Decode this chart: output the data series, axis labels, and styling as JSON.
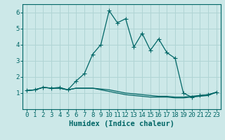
{
  "xlabel": "Humidex (Indice chaleur)",
  "bg_color": "#cce8e8",
  "line_color": "#006666",
  "grid_color": "#b0d4d4",
  "x_values": [
    0,
    1,
    2,
    3,
    4,
    5,
    6,
    7,
    8,
    9,
    10,
    11,
    12,
    13,
    14,
    15,
    16,
    17,
    18,
    19,
    20,
    21,
    22,
    23
  ],
  "series1": [
    1.15,
    1.2,
    1.35,
    1.3,
    1.35,
    1.2,
    1.75,
    2.2,
    3.4,
    4.0,
    6.1,
    5.35,
    5.6,
    3.85,
    4.7,
    3.65,
    4.35,
    3.5,
    3.15,
    1.0,
    0.75,
    0.85,
    0.9,
    1.05
  ],
  "series2": [
    1.15,
    1.2,
    1.35,
    1.3,
    1.3,
    1.2,
    1.3,
    1.3,
    1.3,
    1.25,
    1.2,
    1.1,
    1.0,
    0.95,
    0.9,
    0.85,
    0.8,
    0.8,
    0.75,
    0.75,
    0.8,
    0.85,
    0.9,
    1.05
  ],
  "series3": [
    1.15,
    1.2,
    1.35,
    1.3,
    1.3,
    1.2,
    1.3,
    1.3,
    1.3,
    1.2,
    1.1,
    1.0,
    0.9,
    0.85,
    0.8,
    0.75,
    0.75,
    0.75,
    0.7,
    0.7,
    0.75,
    0.8,
    0.85,
    1.05
  ],
  "xlim": [
    -0.5,
    23.5
  ],
  "ylim": [
    0,
    6.5
  ],
  "yticks": [
    1,
    2,
    3,
    4,
    5,
    6
  ],
  "xticks": [
    0,
    1,
    2,
    3,
    4,
    5,
    6,
    7,
    8,
    9,
    10,
    11,
    12,
    13,
    14,
    15,
    16,
    17,
    18,
    19,
    20,
    21,
    22,
    23
  ],
  "tick_fontsize": 6.5,
  "xlabel_fontsize": 7.5,
  "marker_size": 2.5,
  "line_width": 0.9
}
